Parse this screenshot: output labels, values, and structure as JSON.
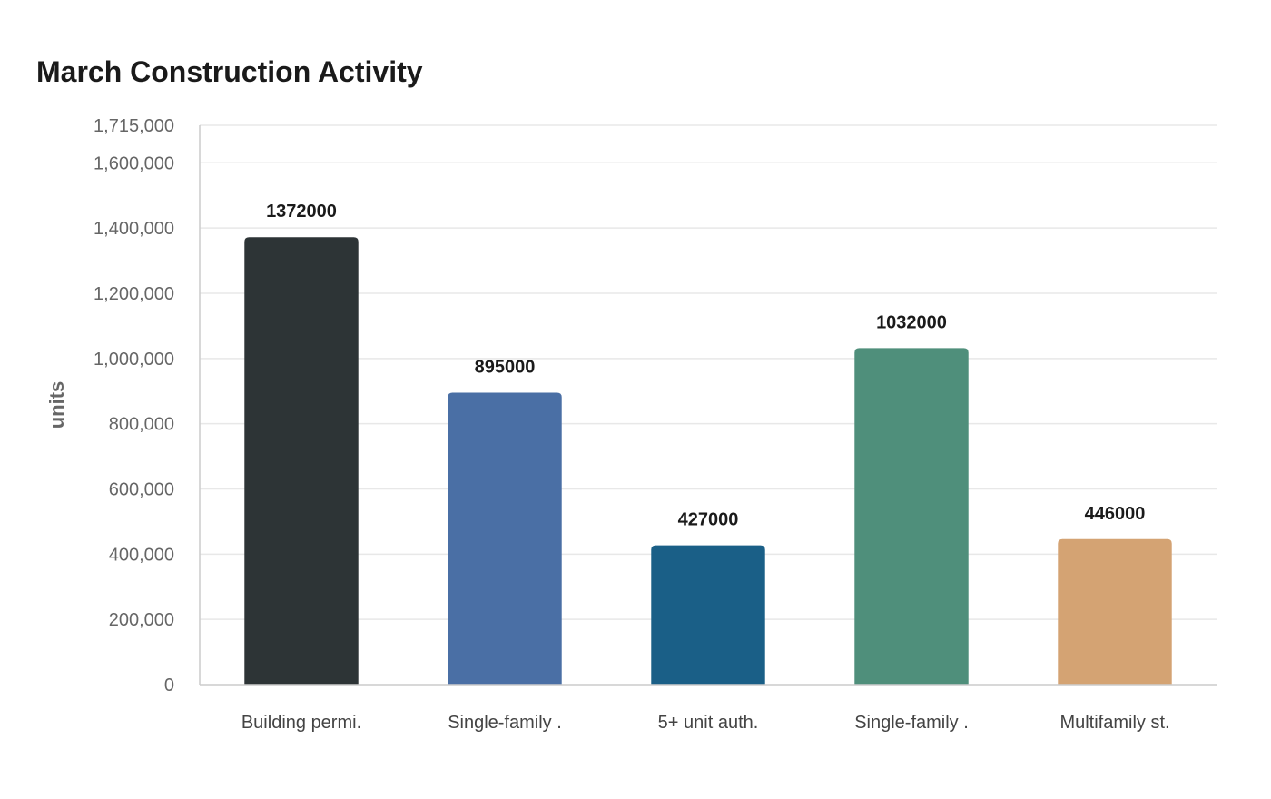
{
  "chart_data": {
    "type": "bar",
    "title": "March Construction Activity",
    "xlabel": "",
    "ylabel": "units",
    "categories": [
      "Building permi.",
      "Single-family .",
      "5+ unit auth.",
      "Single-family .",
      "Multifamily st."
    ],
    "values": [
      1372000,
      895000,
      427000,
      1032000,
      446000
    ],
    "value_labels": [
      "1372000",
      "895000",
      "427000",
      "1032000",
      "446000"
    ],
    "colors": [
      "#2d3436",
      "#4a6fa5",
      "#1a5f87",
      "#4f8f7b",
      "#d4a373"
    ],
    "ylim": [
      0,
      1715000
    ],
    "yticks": [
      0,
      200000,
      400000,
      600000,
      800000,
      1000000,
      1200000,
      1400000,
      1600000,
      1715000
    ],
    "ytick_labels": [
      "0",
      "200,000",
      "400,000",
      "600,000",
      "800,000",
      "1,000,000",
      "1,200,000",
      "1,400,000",
      "1,600,000",
      "1,715,000"
    ],
    "grid": true,
    "legend": "none"
  }
}
